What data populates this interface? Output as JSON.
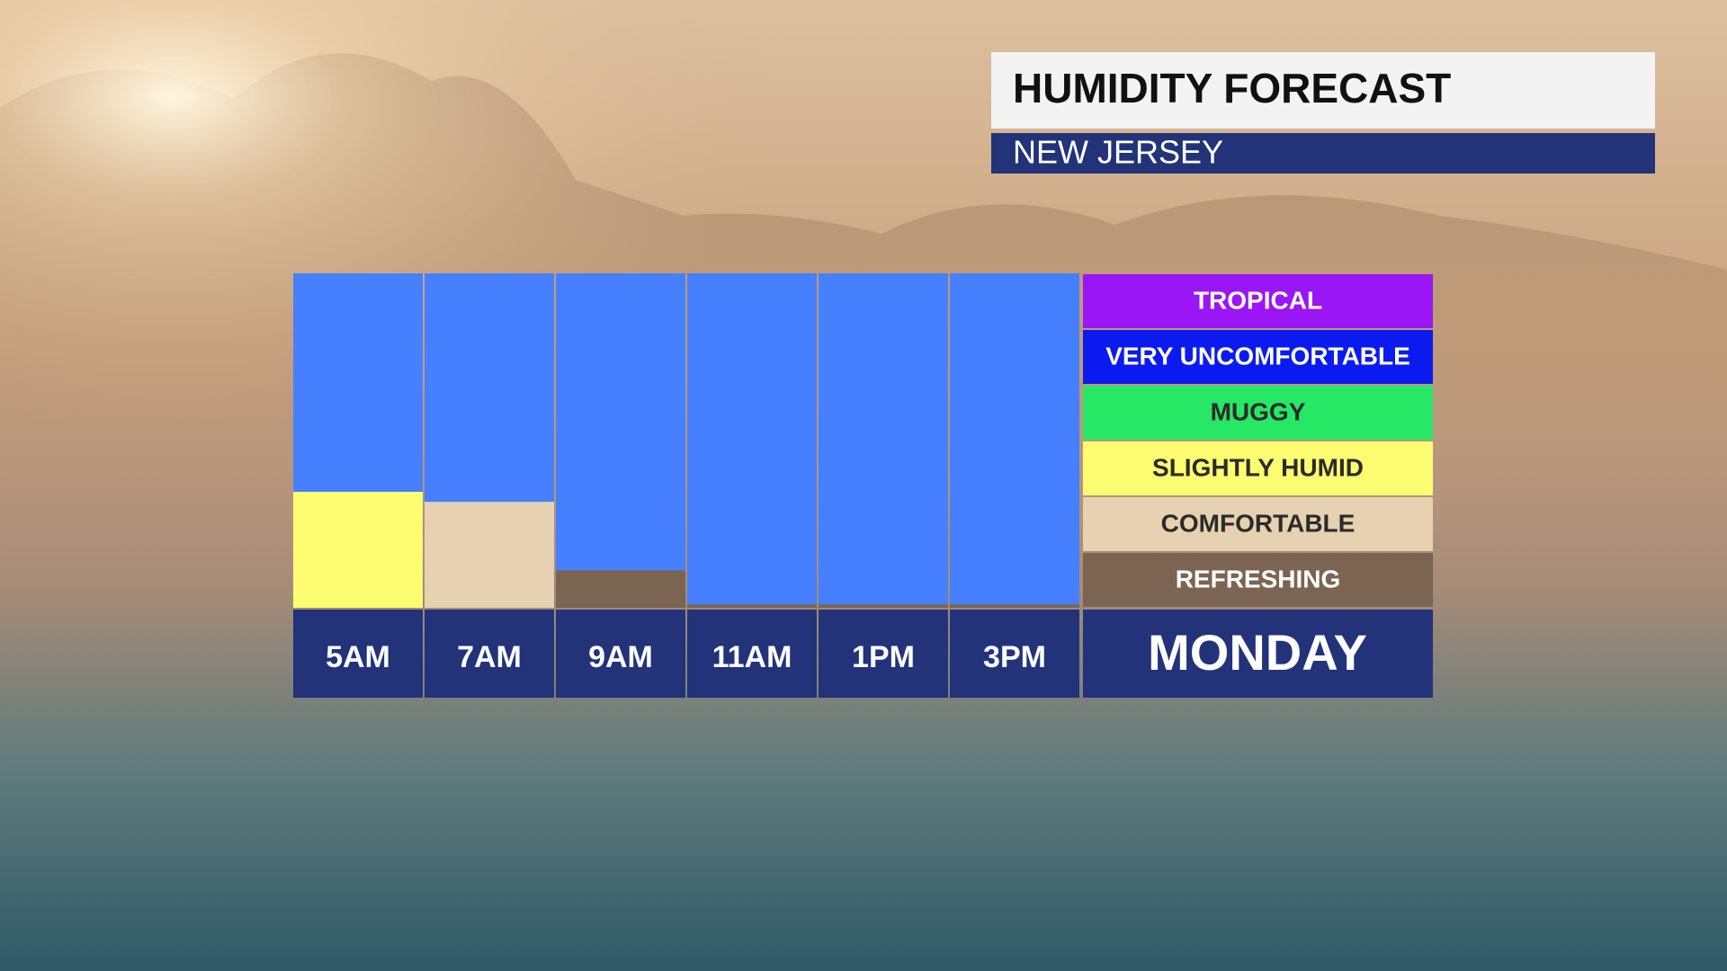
{
  "chart_data": {
    "type": "bar",
    "title": "HUMIDITY FORECAST",
    "subtitle": "NEW JERSEY",
    "day": "MONDAY",
    "categories": [
      "5AM",
      "7AM",
      "9AM",
      "11AM",
      "1PM",
      "3PM"
    ],
    "values": [
      2.08,
      1.9,
      0.67,
      0.06,
      0.06,
      0.06
    ],
    "ylim": [
      0,
      6
    ],
    "background_color": "#4680ff",
    "levels": [
      {
        "name": "REFRESHING",
        "color": "#7b6451",
        "text_color": "#ffffff"
      },
      {
        "name": "COMFORTABLE",
        "color": "#e6d2b0",
        "text_color": "#2b2b2b"
      },
      {
        "name": "SLIGHTLY HUMID",
        "color": "#fdfd72",
        "text_color": "#2b2b2b"
      },
      {
        "name": "MUGGY",
        "color": "#27e865",
        "text_color": "#2b2b2b"
      },
      {
        "name": "VERY UNCOMFORTABLE",
        "color": "#0b1bf0",
        "text_color": "#ffffff"
      },
      {
        "name": "TROPICAL",
        "color": "#9a16f5",
        "text_color": "#ffffff"
      }
    ]
  }
}
